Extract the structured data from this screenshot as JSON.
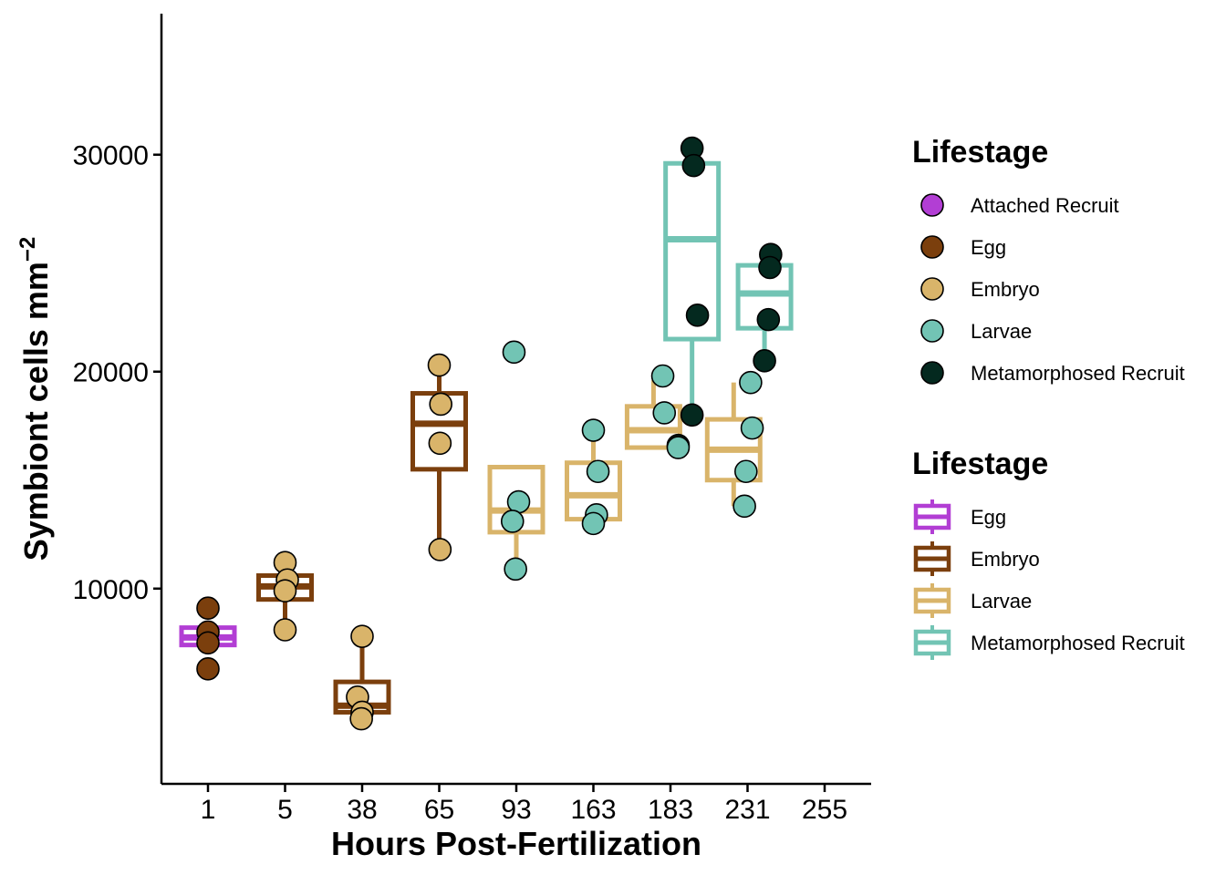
{
  "chart_data": {
    "type": "boxplot+scatter",
    "xlabel": "Hours Post-Fertilization",
    "ylabel": "Symbiont cells mm",
    "ylabel_sup": "−2",
    "categories": [
      "1",
      "5",
      "38",
      "65",
      "93",
      "163",
      "183",
      "231",
      "255"
    ],
    "ylim": [
      1000,
      36500
    ],
    "yticks": [
      10000,
      20000,
      30000
    ],
    "grid": false,
    "colors": {
      "Attached Recruit": "#b23ed4",
      "Egg": "#7b3f0d",
      "Embryo": "#d9b46a",
      "Larvae": "#72c4b4",
      "Metamorphosed Recruit": "#04291f"
    },
    "box_colors": {
      "Egg": "#b23ed4",
      "Embryo": "#7b3f0d",
      "Larvae": "#d9b46a",
      "Metamorphosed Recruit": "#72c4b4"
    },
    "boxes": [
      {
        "x": "1",
        "group": "Egg",
        "offset": 0,
        "low": 7400,
        "q1": 7400,
        "median": 7750,
        "q3": 8200,
        "high": 8200
      },
      {
        "x": "5",
        "group": "Embryo",
        "offset": 0,
        "low": 8200,
        "q1": 9500,
        "median": 10100,
        "q3": 10600,
        "high": 11200
      },
      {
        "x": "38",
        "group": "Embryo",
        "offset": 0,
        "low": 4200,
        "q1": 4300,
        "median": 4600,
        "q3": 5700,
        "high": 7800
      },
      {
        "x": "65",
        "group": "Embryo",
        "offset": 0,
        "low": 11800,
        "q1": 15500,
        "median": 17600,
        "q3": 19000,
        "high": 20300
      },
      {
        "x": "93",
        "group": "Larvae",
        "offset": 0,
        "low": 10900,
        "q1": 12600,
        "median": 13600,
        "q3": 15600,
        "high": 15600
      },
      {
        "x": "163",
        "group": "Larvae",
        "offset": 0,
        "low": 12900,
        "q1": 13200,
        "median": 14300,
        "q3": 15800,
        "high": 17300
      },
      {
        "x": "183",
        "group": "Larvae",
        "offset": -0.22,
        "low": 16500,
        "q1": 16500,
        "median": 17300,
        "q3": 18400,
        "high": 19600
      },
      {
        "x": "183",
        "group": "Metamorphosed Recruit",
        "offset": 0.28,
        "low": 18000,
        "q1": 21500,
        "median": 26100,
        "q3": 29600,
        "high": 30300
      },
      {
        "x": "231",
        "group": "Larvae",
        "offset": -0.18,
        "low": 13800,
        "q1": 15000,
        "median": 16400,
        "q3": 17800,
        "high": 19500
      },
      {
        "x": "231",
        "group": "Metamorphosed Recruit",
        "offset": 0.22,
        "low": 20500,
        "q1": 22000,
        "median": 23600,
        "q3": 24900,
        "high": 25400
      }
    ],
    "points": [
      {
        "x": "1",
        "dx": 0.0,
        "y": 9100,
        "group": "Egg"
      },
      {
        "x": "1",
        "dx": 0.0,
        "y": 8000,
        "group": "Egg"
      },
      {
        "x": "1",
        "dx": 0.0,
        "y": 7500,
        "group": "Egg"
      },
      {
        "x": "1",
        "dx": 0.0,
        "y": 6300,
        "group": "Egg"
      },
      {
        "x": "5",
        "dx": 0.0,
        "y": 11200,
        "group": "Embryo"
      },
      {
        "x": "5",
        "dx": 0.03,
        "y": 10400,
        "group": "Embryo"
      },
      {
        "x": "5",
        "dx": 0.0,
        "y": 9900,
        "group": "Embryo"
      },
      {
        "x": "5",
        "dx": 0.0,
        "y": 8100,
        "group": "Embryo"
      },
      {
        "x": "38",
        "dx": 0.0,
        "y": 7800,
        "group": "Embryo"
      },
      {
        "x": "38",
        "dx": -0.06,
        "y": 5000,
        "group": "Embryo"
      },
      {
        "x": "38",
        "dx": 0.0,
        "y": 4300,
        "group": "Embryo"
      },
      {
        "x": "38",
        "dx": -0.01,
        "y": 4000,
        "group": "Embryo"
      },
      {
        "x": "65",
        "dx": 0.0,
        "y": 20300,
        "group": "Embryo"
      },
      {
        "x": "65",
        "dx": 0.02,
        "y": 18500,
        "group": "Embryo"
      },
      {
        "x": "65",
        "dx": 0.01,
        "y": 16700,
        "group": "Embryo"
      },
      {
        "x": "65",
        "dx": 0.01,
        "y": 11800,
        "group": "Embryo"
      },
      {
        "x": "93",
        "dx": -0.03,
        "y": 20900,
        "group": "Larvae"
      },
      {
        "x": "93",
        "dx": 0.03,
        "y": 14000,
        "group": "Larvae"
      },
      {
        "x": "93",
        "dx": -0.05,
        "y": 13100,
        "group": "Larvae"
      },
      {
        "x": "93",
        "dx": -0.01,
        "y": 10900,
        "group": "Larvae"
      },
      {
        "x": "163",
        "dx": 0.0,
        "y": 17300,
        "group": "Larvae"
      },
      {
        "x": "163",
        "dx": 0.06,
        "y": 15400,
        "group": "Larvae"
      },
      {
        "x": "163",
        "dx": 0.04,
        "y": 13400,
        "group": "Larvae"
      },
      {
        "x": "163",
        "dx": 0.0,
        "y": 13000,
        "group": "Larvae"
      },
      {
        "x": "183",
        "dx": -0.1,
        "y": 19800,
        "group": "Larvae"
      },
      {
        "x": "183",
        "dx": -0.08,
        "y": 18100,
        "group": "Larvae"
      },
      {
        "x": "183",
        "dx": 0.1,
        "y": 16600,
        "group": "Metamorphosed Recruit"
      },
      {
        "x": "183",
        "dx": 0.1,
        "y": 16500,
        "group": "Larvae"
      },
      {
        "x": "183",
        "dx": 0.28,
        "y": 30300,
        "group": "Metamorphosed Recruit"
      },
      {
        "x": "183",
        "dx": 0.3,
        "y": 29500,
        "group": "Metamorphosed Recruit"
      },
      {
        "x": "183",
        "dx": 0.35,
        "y": 22600,
        "group": "Metamorphosed Recruit"
      },
      {
        "x": "183",
        "dx": 0.28,
        "y": 18000,
        "group": "Metamorphosed Recruit"
      },
      {
        "x": "231",
        "dx": 0.04,
        "y": 19500,
        "group": "Larvae"
      },
      {
        "x": "231",
        "dx": 0.06,
        "y": 17400,
        "group": "Larvae"
      },
      {
        "x": "231",
        "dx": -0.02,
        "y": 15400,
        "group": "Larvae"
      },
      {
        "x": "231",
        "dx": -0.04,
        "y": 13800,
        "group": "Larvae"
      },
      {
        "x": "231",
        "dx": 0.3,
        "y": 25400,
        "group": "Metamorphosed Recruit"
      },
      {
        "x": "231",
        "dx": 0.29,
        "y": 24800,
        "group": "Metamorphosed Recruit"
      },
      {
        "x": "231",
        "dx": 0.27,
        "y": 22400,
        "group": "Metamorphosed Recruit"
      },
      {
        "x": "231",
        "dx": 0.22,
        "y": 20500,
        "group": "Metamorphosed Recruit"
      }
    ],
    "legends": [
      {
        "title": "Lifestage",
        "kind": "point",
        "placement": "right",
        "items": [
          "Attached Recruit",
          "Egg",
          "Embryo",
          "Larvae",
          "Metamorphosed Recruit"
        ]
      },
      {
        "title": "Lifestage",
        "kind": "box",
        "placement": "right",
        "items": [
          "Egg",
          "Embryo",
          "Larvae",
          "Metamorphosed Recruit"
        ]
      }
    ]
  }
}
